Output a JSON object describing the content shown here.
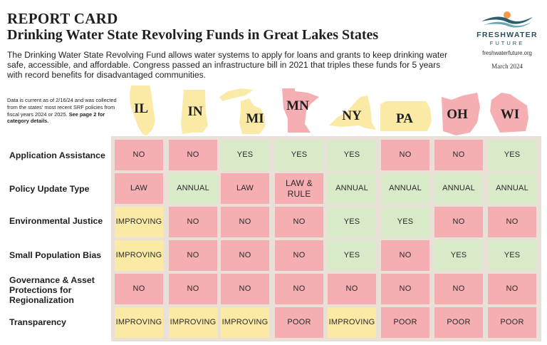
{
  "header": {
    "title": "REPORT CARD",
    "subtitle": "Drinking Water State Revolving Funds in Great Lakes States",
    "intro": "The Drinking Water State Revolving Fund allows water systems to apply for loans and grants to keep drinking water safe, accessible, and affordable. Congress passed an infrastructure bill in 2021 that triples these funds for 5 years with record benefits for disadvantaged communities.",
    "note_plain": "Data is current as of 2/16/24 and was collected from the states' most recent SRF policies from fiscal years 2024 or 2025.",
    "note_bold": "See page 2 for category details."
  },
  "logo": {
    "brand_line1": "FRESHWATER",
    "brand_line2": "FUTURE",
    "url": "freshwaterfuture.org",
    "date": "March 2024",
    "colors": {
      "sun": "#f2994a",
      "wave": "#2b5d6e",
      "wave2": "#6aa7b3"
    }
  },
  "states": [
    "IL",
    "IN",
    "MI",
    "MN",
    "NY",
    "PA",
    "OH",
    "WI"
  ],
  "state_colors": {
    "IL": "#fbeaa6",
    "IN": "#fbeaa6",
    "MI": "#fbeaa6",
    "MN": "#f5aeb2",
    "NY": "#fbeaa6",
    "PA": "#fbeaa6",
    "OH": "#f5aeb2",
    "WI": "#f5aeb2"
  },
  "rows": [
    {
      "label": "Application Assistance",
      "values": [
        "NO",
        "NO",
        "YES",
        "YES",
        "YES",
        "NO",
        "NO",
        "YES"
      ]
    },
    {
      "label": "Policy Update Type",
      "values": [
        "LAW",
        "ANNUAL",
        "LAW",
        "LAW & RULE",
        "ANNUAL",
        "ANNUAL",
        "ANNUAL",
        "ANNUAL"
      ]
    },
    {
      "label": "Environmental Justice",
      "values": [
        "IMPROVING",
        "NO",
        "NO",
        "NO",
        "YES",
        "YES",
        "NO",
        "NO"
      ]
    },
    {
      "label": "Small Population Bias",
      "values": [
        "IMPROVING",
        "NO",
        "NO",
        "NO",
        "YES",
        "NO",
        "YES",
        "YES"
      ]
    },
    {
      "label": "Governance & Asset Protections for Regionalization",
      "values": [
        "NO",
        "NO",
        "NO",
        "NO",
        "NO",
        "NO",
        "NO",
        "NO"
      ]
    },
    {
      "label": "Transparency",
      "values": [
        "IMPROVING",
        "IMPROVING",
        "IMPROVING",
        "POOR",
        "IMPROVING",
        "POOR",
        "POOR",
        "POOR"
      ]
    }
  ],
  "value_colors": {
    "YES": "#d9eac9",
    "ANNUAL": "#d9eac9",
    "NO": "#f5aeb2",
    "LAW": "#f5aeb2",
    "LAW & RULE": "#f5aeb2",
    "POOR": "#f5aeb2",
    "IMPROVING": "#fbeaa6"
  },
  "grid_background": "#e9e0d8"
}
